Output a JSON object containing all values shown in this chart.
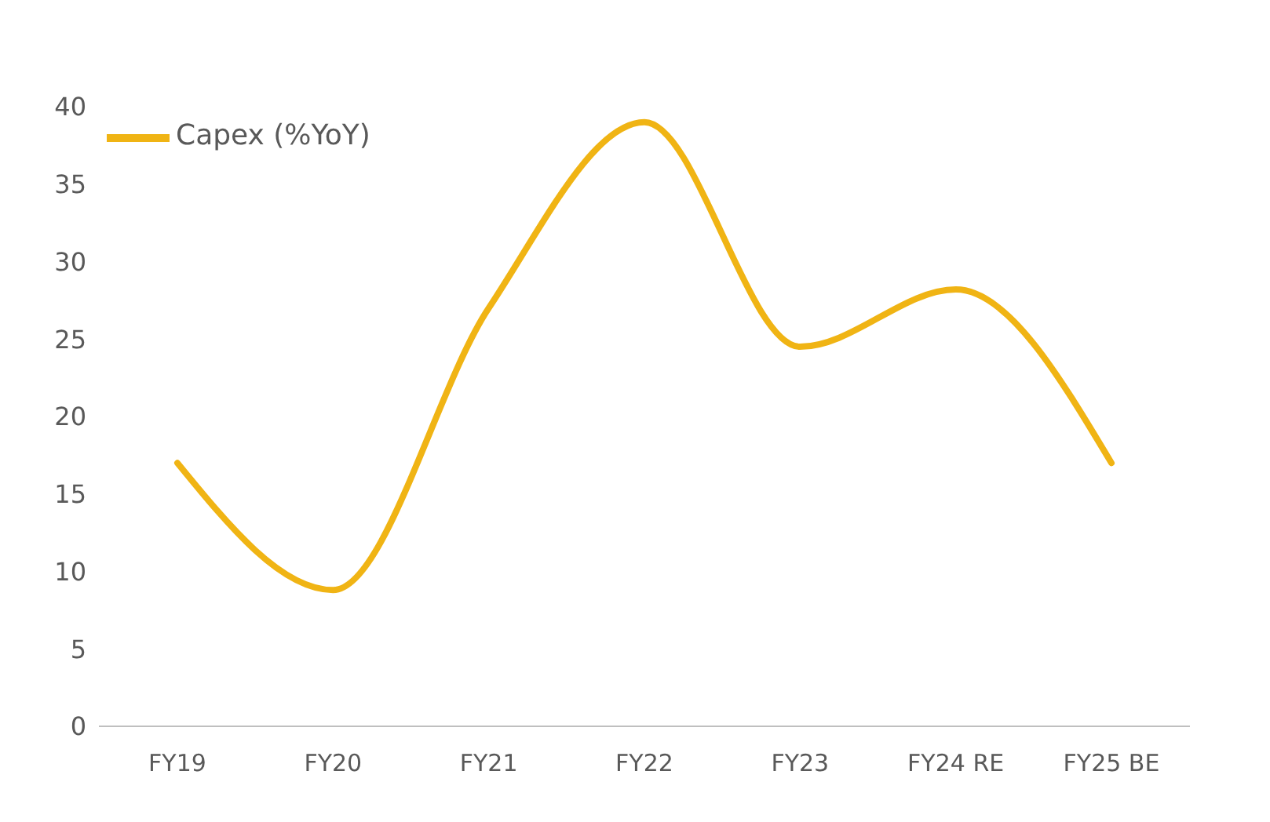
{
  "chart_data": {
    "type": "line",
    "categories": [
      "FY19",
      "FY20",
      "FY21",
      "FY22",
      "FY23",
      "FY24 RE",
      "FY25 BE"
    ],
    "series": [
      {
        "name": "Capex (%YoY)",
        "color": "#f0b414",
        "values": [
          17,
          8.8,
          27,
          39,
          24.5,
          28.2,
          17
        ]
      }
    ],
    "ylim": [
      0,
      40
    ],
    "yticks": [
      0,
      5,
      10,
      15,
      20,
      25,
      30,
      35,
      40
    ],
    "grid": false,
    "legend": "top left",
    "marker": "none",
    "line_style": "solid"
  }
}
